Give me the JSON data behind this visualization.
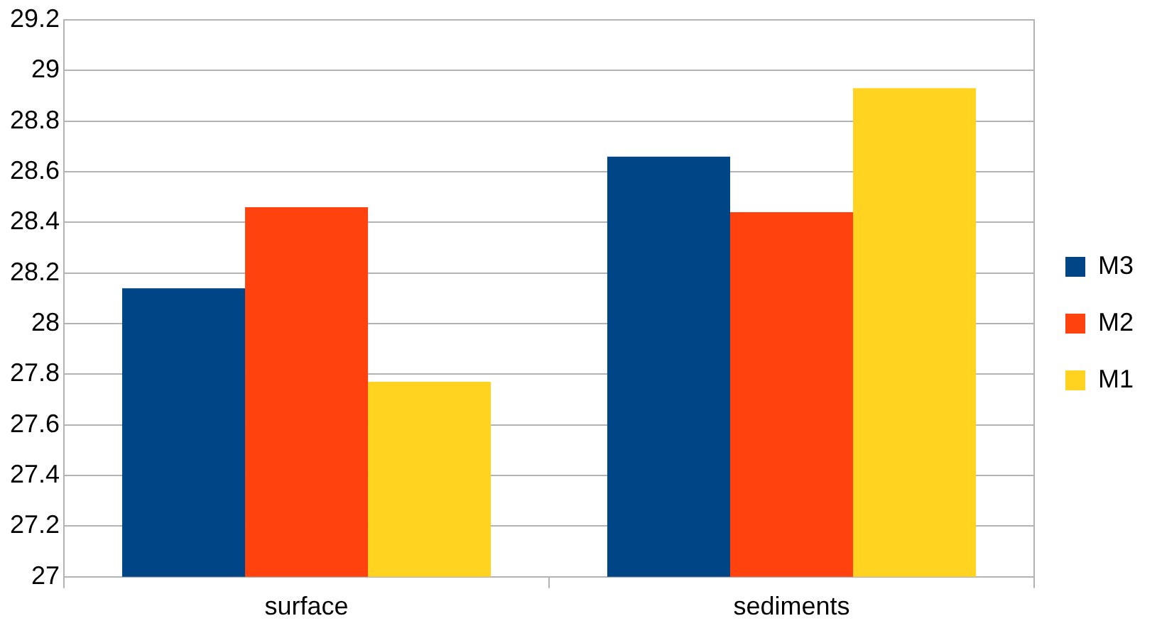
{
  "chart_data": {
    "type": "bar",
    "categories": [
      "surface",
      "sediments"
    ],
    "series": [
      {
        "name": "M3",
        "color": "#004586",
        "values": [
          28.14,
          28.66
        ]
      },
      {
        "name": "M2",
        "color": "#ff420e",
        "values": [
          28.46,
          28.44
        ]
      },
      {
        "name": "M1",
        "color": "#ffd320",
        "values": [
          27.77,
          28.93
        ]
      }
    ],
    "ylim": [
      27,
      29.2
    ],
    "yticks": [
      27,
      27.2,
      27.4,
      27.6,
      27.8,
      28,
      28.2,
      28.4,
      28.6,
      28.8,
      29,
      29.2
    ],
    "grid": "y",
    "legend": "right"
  }
}
